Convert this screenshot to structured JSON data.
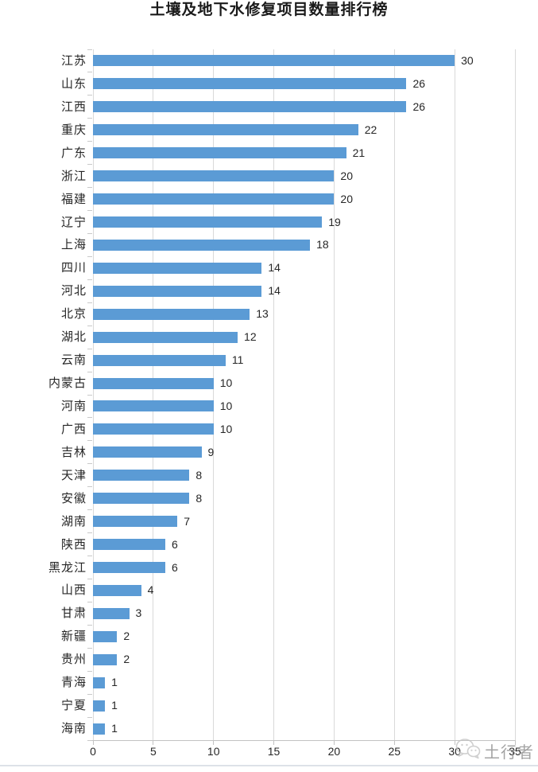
{
  "title": "土壤及地下水修复项目数量排行榜",
  "watermark": {
    "label": "土行者",
    "icon": "wechat-icon"
  },
  "colors": {
    "bar": "#5B9BD5",
    "gridline": "#D9D9D9",
    "axis": "#C3C3C3",
    "text": "#262626",
    "watermark_text": "#8D8D8D"
  },
  "chart_data": {
    "type": "bar",
    "orientation": "horizontal",
    "title": "土壤及地下水修复项目数量排行榜",
    "xlabel": "",
    "ylabel": "",
    "categories": [
      "江苏",
      "山东",
      "江西",
      "重庆",
      "广东",
      "浙江",
      "福建",
      "辽宁",
      "上海",
      "四川",
      "河北",
      "北京",
      "湖北",
      "云南",
      "内蒙古",
      "河南",
      "广西",
      "吉林",
      "天津",
      "安徽",
      "湖南",
      "陕西",
      "黑龙江",
      "山西",
      "甘肃",
      "新疆",
      "贵州",
      "青海",
      "宁夏",
      "海南"
    ],
    "values": [
      30,
      26,
      26,
      22,
      21,
      20,
      20,
      19,
      18,
      14,
      14,
      13,
      12,
      11,
      10,
      10,
      10,
      9,
      8,
      8,
      7,
      6,
      6,
      4,
      3,
      2,
      2,
      1,
      1,
      1
    ],
    "xlim": [
      0,
      35
    ],
    "xticks": [
      0,
      5,
      10,
      15,
      20,
      25,
      30,
      35
    ],
    "grid": true,
    "legend": "none",
    "data_labels": true
  }
}
